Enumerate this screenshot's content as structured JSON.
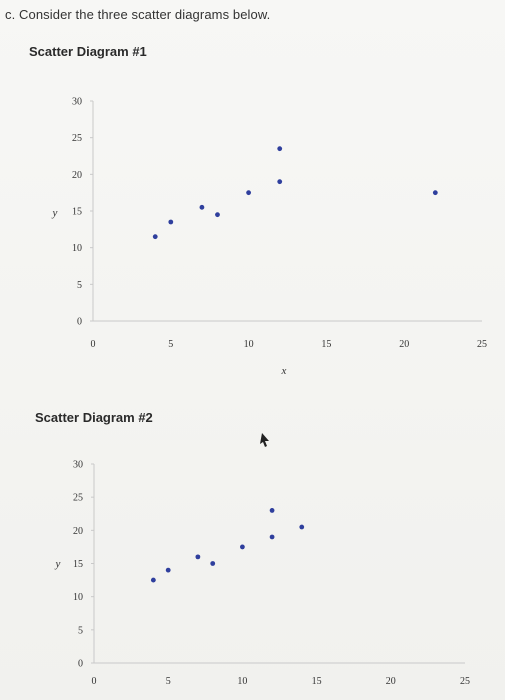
{
  "question": {
    "text": "c. Consider the three scatter diagrams below."
  },
  "chart_data": [
    {
      "type": "scatter",
      "title": "Scatter Diagram #1",
      "xlabel": "x",
      "ylabel": "y",
      "xlim": [
        0,
        25
      ],
      "ylim": [
        0,
        30
      ],
      "x_ticks": [
        "0",
        "5",
        "10",
        "15",
        "20",
        "25"
      ],
      "y_ticks": [
        "0",
        "5",
        "10",
        "15",
        "20",
        "25",
        "30"
      ],
      "points": [
        {
          "x": 4,
          "y": 11.5
        },
        {
          "x": 5,
          "y": 13.5
        },
        {
          "x": 7,
          "y": 15.5
        },
        {
          "x": 8,
          "y": 14.5
        },
        {
          "x": 10,
          "y": 17.5
        },
        {
          "x": 12,
          "y": 19
        },
        {
          "x": 12,
          "y": 23.5
        },
        {
          "x": 22,
          "y": 17.5
        }
      ]
    },
    {
      "type": "scatter",
      "title": "Scatter Diagram #2",
      "xlabel": "",
      "ylabel": "y",
      "xlim": [
        0,
        25
      ],
      "ylim": [
        0,
        30
      ],
      "x_ticks": [
        "0",
        "5",
        "10",
        "15",
        "20",
        "25"
      ],
      "y_ticks": [
        "0",
        "5",
        "10",
        "15",
        "20",
        "25",
        "30"
      ],
      "points": [
        {
          "x": 4,
          "y": 12.5
        },
        {
          "x": 5,
          "y": 14
        },
        {
          "x": 7,
          "y": 16
        },
        {
          "x": 8,
          "y": 15
        },
        {
          "x": 10,
          "y": 17.5
        },
        {
          "x": 12,
          "y": 19
        },
        {
          "x": 12,
          "y": 23
        },
        {
          "x": 14,
          "y": 20.5
        }
      ]
    }
  ]
}
